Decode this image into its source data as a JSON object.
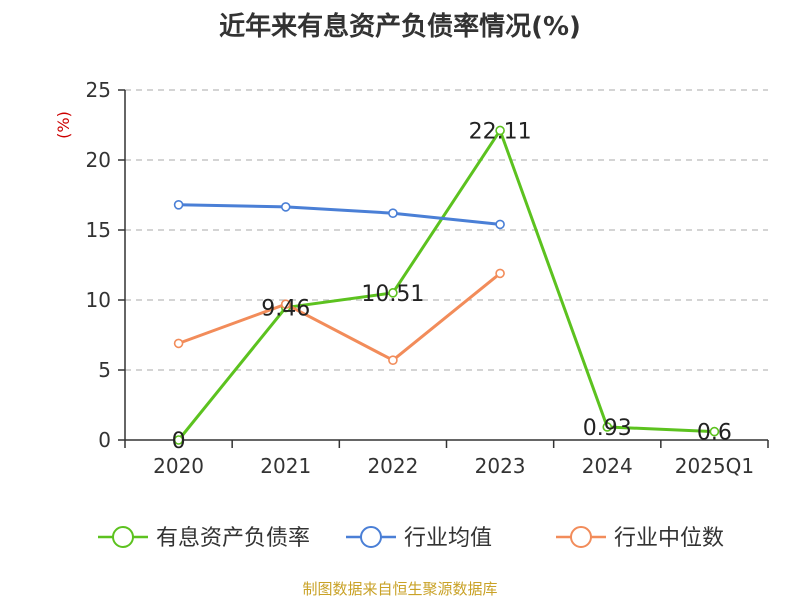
{
  "title": "近年来有息资产负债率情况(%)",
  "footer": "制图数据来自恒生聚源数据库",
  "chart_data": {
    "type": "line",
    "title": "近年来有息资产负债率情况(%)",
    "ylabel": "(%)",
    "xlabel": "",
    "ylim": [
      0,
      25
    ],
    "yticks": [
      0,
      5,
      10,
      15,
      20,
      25
    ],
    "grid": true,
    "legend_position": "bottom",
    "categories": [
      "2020",
      "2021",
      "2022",
      "2023",
      "2024",
      "2025Q1"
    ],
    "series": [
      {
        "name": "有息资产负债率",
        "color": "#5cc21f",
        "values": [
          0,
          9.46,
          10.51,
          22.11,
          0.93,
          0.6
        ],
        "labels": [
          "0",
          "9.46",
          "10.51",
          "22.11",
          "0.93",
          "0.6"
        ]
      },
      {
        "name": "行业均值",
        "color": "#4a7fd6",
        "values": [
          16.8,
          16.65,
          16.2,
          15.4,
          null,
          null
        ]
      },
      {
        "name": "行业中位数",
        "color": "#f28c5a",
        "values": [
          6.9,
          9.7,
          5.7,
          11.9,
          null,
          null
        ]
      }
    ]
  }
}
